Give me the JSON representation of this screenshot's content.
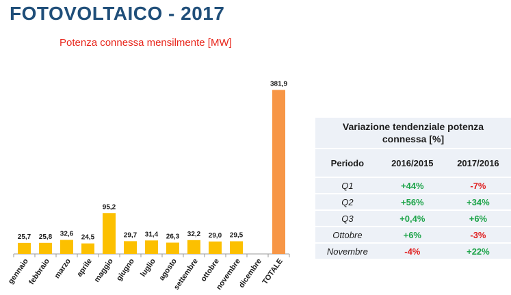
{
  "title": "FOTOVOLTAICO - 2017",
  "subtitle": "Potenza connessa mensilmente [MW]",
  "colors": {
    "bar": "#fcc000",
    "total_bar": "#f79646",
    "title": "#1f4e79",
    "subtitle": "#e8261c",
    "positive": "#1ea44a",
    "negative": "#e02020",
    "table_bg": "#edf1f7"
  },
  "chart_data": {
    "type": "bar",
    "categories": [
      "gennaio",
      "febbraio",
      "marzo",
      "aprile",
      "maggio",
      "giugno",
      "luglio",
      "agosto",
      "settembre",
      "ottobre",
      "novembre",
      "dicembre",
      "TOTALE"
    ],
    "values": [
      25.7,
      25.8,
      32.6,
      24.5,
      95.2,
      29.7,
      31.4,
      26.3,
      32.2,
      29.0,
      29.5,
      null,
      381.9
    ],
    "labels": [
      "25,7",
      "25,8",
      "32,6",
      "24,5",
      "95,2",
      "29,7",
      "31,4",
      "26,3",
      "32,2",
      "29,0",
      "29,5",
      "",
      "381,9"
    ],
    "ylim": [
      0,
      400
    ],
    "grid": false,
    "legend": "none",
    "xlabel": "",
    "ylabel": ""
  },
  "table": {
    "title_line1": "Variazione tendenziale potenza",
    "title_line2": "connessa [%]",
    "headers": [
      "Periodo",
      "2016/2015",
      "2017/2016"
    ],
    "rows": [
      {
        "period": "Q1",
        "v2016": "+44%",
        "v2017": "-7%"
      },
      {
        "period": "Q2",
        "v2016": "+56%",
        "v2017": "+34%"
      },
      {
        "period": "Q3",
        "v2016": "+0,4%",
        "v2017": "+6%"
      },
      {
        "period": "Ottobre",
        "v2016": "+6%",
        "v2017": "-3%"
      },
      {
        "period": "Novembre",
        "v2016": "-4%",
        "v2017": "+22%"
      }
    ]
  }
}
